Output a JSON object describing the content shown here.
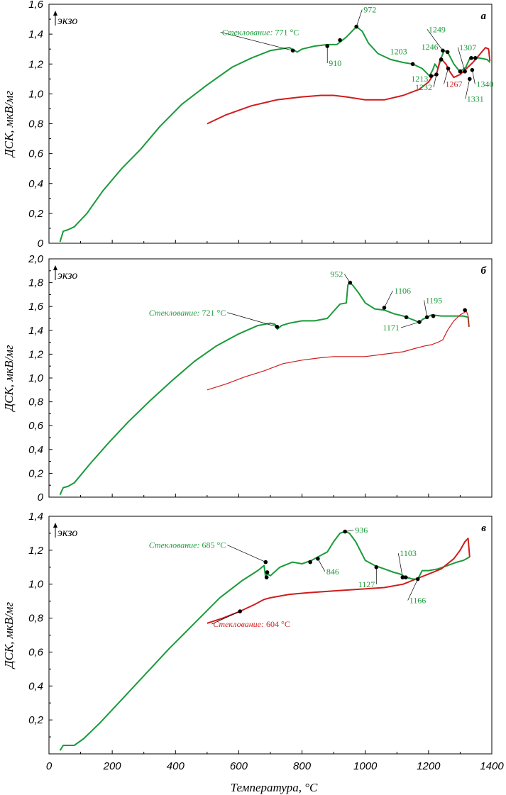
{
  "xlabel": "Температура, °C",
  "ylabel": "ДСК, мкВ/мг",
  "exo_label": "экзо",
  "colors": {
    "green": "#1a9a3a",
    "red": "#d01c1c",
    "axis": "#000000"
  },
  "x_ticks": [
    "0",
    "200",
    "400",
    "600",
    "800",
    "1000",
    "1200",
    "1400"
  ],
  "chart_data": [
    {
      "panel_label": "а",
      "type": "line",
      "xlim": [
        0,
        1400
      ],
      "ylim": [
        0,
        1.6
      ],
      "y_ticks": [
        "0",
        "0,2",
        "0,4",
        "0,6",
        "0,8",
        "1,0",
        "1,2",
        "1,4",
        "1,6"
      ],
      "series": [
        {
          "color": "green",
          "x": [
            35,
            45,
            60,
            80,
            120,
            170,
            230,
            290,
            350,
            420,
            500,
            580,
            640,
            700,
            760,
            785,
            800,
            840,
            880,
            910,
            940,
            972,
            990,
            1010,
            1040,
            1080,
            1120,
            1150,
            1180,
            1203,
            1213,
            1220,
            1230,
            1240,
            1249,
            1260,
            1270,
            1280,
            1295,
            1307,
            1318,
            1331,
            1340,
            1360,
            1385,
            1395
          ],
          "y": [
            0.01,
            0.08,
            0.09,
            0.11,
            0.2,
            0.35,
            0.5,
            0.63,
            0.78,
            0.93,
            1.06,
            1.18,
            1.24,
            1.29,
            1.31,
            1.28,
            1.3,
            1.32,
            1.33,
            1.33,
            1.38,
            1.45,
            1.42,
            1.34,
            1.27,
            1.23,
            1.21,
            1.2,
            1.17,
            1.12,
            1.16,
            1.2,
            1.17,
            1.24,
            1.29,
            1.28,
            1.24,
            1.2,
            1.16,
            1.16,
            1.18,
            1.24,
            1.24,
            1.24,
            1.23,
            1.21
          ]
        },
        {
          "color": "red",
          "x": [
            500,
            560,
            640,
            720,
            800,
            860,
            900,
            940,
            1000,
            1060,
            1120,
            1170,
            1200,
            1213,
            1225,
            1238,
            1246,
            1255,
            1267,
            1280,
            1300,
            1320,
            1340,
            1360,
            1380,
            1390,
            1394
          ],
          "y": [
            0.8,
            0.86,
            0.92,
            0.96,
            0.98,
            0.99,
            0.99,
            0.98,
            0.96,
            0.96,
            0.99,
            1.03,
            1.08,
            1.12,
            1.13,
            1.24,
            1.22,
            1.2,
            1.15,
            1.11,
            1.13,
            1.17,
            1.21,
            1.26,
            1.31,
            1.3,
            1.22
          ]
        }
      ],
      "points": [
        {
          "color": "green",
          "x": 771,
          "y": 1.29,
          "label": "Стеклование: 771 °C",
          "italic_prefix": "Стеклование:",
          "value": " 771 °C"
        },
        {
          "color": "green",
          "x": 880,
          "y": 1.32,
          "label": "910"
        },
        {
          "color": "green",
          "x": 920,
          "y": 1.36,
          "label": ""
        },
        {
          "color": "green",
          "x": 972,
          "y": 1.45,
          "label": "972"
        },
        {
          "color": "green",
          "x": 1150,
          "y": 1.2,
          "label": "1203"
        },
        {
          "color": "green",
          "x": 1208,
          "y": 1.12,
          "label": "1213"
        },
        {
          "color": "green",
          "x": 1225,
          "y": 1.13,
          "label": "1232"
        },
        {
          "color": "green",
          "x": 1240,
          "y": 1.23,
          "label": "1246"
        },
        {
          "color": "green",
          "x": 1245,
          "y": 1.29,
          "label": "1249"
        },
        {
          "color": "green",
          "x": 1260,
          "y": 1.28,
          "label": ""
        },
        {
          "color": "red",
          "x": 1262,
          "y": 1.17,
          "label": "1267"
        },
        {
          "color": "green",
          "x": 1300,
          "y": 1.15,
          "label": ""
        },
        {
          "color": "green",
          "x": 1315,
          "y": 1.15,
          "label": "1307"
        },
        {
          "color": "green",
          "x": 1330,
          "y": 1.1,
          "label": "1331"
        },
        {
          "color": "green",
          "x": 1335,
          "y": 1.24,
          "label": ""
        },
        {
          "color": "green",
          "x": 1338,
          "y": 1.16,
          "label": "1340"
        },
        {
          "color": "green",
          "x": 1348,
          "y": 1.24,
          "label": ""
        }
      ]
    },
    {
      "panel_label": "б",
      "type": "line",
      "xlim": [
        0,
        1400
      ],
      "ylim": [
        0,
        2.0
      ],
      "y_ticks": [
        "0",
        "0,2",
        "0,4",
        "0,6",
        "0,8",
        "1,0",
        "1,2",
        "1,4",
        "1,6",
        "1,8",
        "2,0"
      ],
      "series": [
        {
          "color": "green",
          "x": [
            35,
            45,
            60,
            80,
            130,
            190,
            250,
            320,
            390,
            460,
            530,
            600,
            660,
            700,
            715,
            722,
            735,
            760,
            800,
            840,
            880,
            900,
            920,
            940,
            945,
            950,
            960,
            980,
            1000,
            1030,
            1060,
            1090,
            1120,
            1140,
            1160,
            1171,
            1180,
            1195,
            1210,
            1240,
            1280,
            1310,
            1325,
            1328
          ],
          "y": [
            0.02,
            0.08,
            0.09,
            0.12,
            0.28,
            0.46,
            0.63,
            0.81,
            0.98,
            1.14,
            1.27,
            1.37,
            1.44,
            1.46,
            1.45,
            1.41,
            1.44,
            1.46,
            1.48,
            1.48,
            1.5,
            1.56,
            1.62,
            1.63,
            1.78,
            1.8,
            1.78,
            1.71,
            1.63,
            1.58,
            1.57,
            1.54,
            1.52,
            1.5,
            1.48,
            1.46,
            1.49,
            1.51,
            1.53,
            1.52,
            1.52,
            1.52,
            1.51,
            1.43
          ]
        },
        {
          "color": "red",
          "x": [
            500,
            560,
            620,
            680,
            740,
            800,
            860,
            900,
            940,
            1000,
            1060,
            1120,
            1160,
            1190,
            1210,
            1230,
            1245,
            1260,
            1280,
            1300,
            1320,
            1325,
            1328
          ],
          "y": [
            0.9,
            0.95,
            1.01,
            1.06,
            1.12,
            1.15,
            1.17,
            1.18,
            1.18,
            1.18,
            1.2,
            1.22,
            1.25,
            1.27,
            1.28,
            1.3,
            1.32,
            1.4,
            1.48,
            1.53,
            1.56,
            1.52,
            1.43
          ]
        }
      ],
      "points": [
        {
          "color": "green",
          "x": 721,
          "y": 1.43,
          "label": "Стеклование: 721 °C",
          "italic_prefix": "Стеклование:",
          "value": " 721 °C"
        },
        {
          "color": "green",
          "x": 952,
          "y": 1.8,
          "label": "952"
        },
        {
          "color": "green",
          "x": 1060,
          "y": 1.59,
          "label": "1106"
        },
        {
          "color": "green",
          "x": 1130,
          "y": 1.51,
          "label": ""
        },
        {
          "color": "green",
          "x": 1171,
          "y": 1.47,
          "label": "1171"
        },
        {
          "color": "green",
          "x": 1195,
          "y": 1.51,
          "label": "1195"
        },
        {
          "color": "green",
          "x": 1215,
          "y": 1.52,
          "label": ""
        },
        {
          "color": "green",
          "x": 1315,
          "y": 1.57,
          "label": ""
        }
      ]
    },
    {
      "panel_label": "в",
      "type": "line",
      "xlim": [
        0,
        1400
      ],
      "ylim": [
        0,
        1.4
      ],
      "y_ticks": [
        "",
        "0,2",
        "0,4",
        "0,6",
        "0,8",
        "1,0",
        "1,2",
        "1,4"
      ],
      "series": [
        {
          "color": "green",
          "x": [
            35,
            45,
            60,
            80,
            110,
            160,
            220,
            300,
            380,
            460,
            540,
            610,
            660,
            680,
            685,
            690,
            700,
            730,
            770,
            800,
            830,
            860,
            880,
            900,
            920,
            936,
            950,
            970,
            1000,
            1030,
            1060,
            1090,
            1110,
            1130,
            1150,
            1166,
            1180,
            1200,
            1230,
            1260,
            1290,
            1310,
            1330
          ],
          "y": [
            0.02,
            0.05,
            0.05,
            0.05,
            0.09,
            0.18,
            0.3,
            0.46,
            0.62,
            0.77,
            0.92,
            1.02,
            1.08,
            1.11,
            1.04,
            1.06,
            1.05,
            1.1,
            1.13,
            1.12,
            1.14,
            1.17,
            1.19,
            1.25,
            1.3,
            1.31,
            1.3,
            1.25,
            1.14,
            1.11,
            1.09,
            1.07,
            1.06,
            1.04,
            1.03,
            1.03,
            1.08,
            1.08,
            1.09,
            1.11,
            1.13,
            1.14,
            1.16
          ]
        },
        {
          "color": "red",
          "x": [
            500,
            550,
            604,
            650,
            680,
            700,
            760,
            820,
            900,
            980,
            1060,
            1120,
            1160,
            1200,
            1240,
            1280,
            1300,
            1315,
            1325,
            1330
          ],
          "y": [
            0.77,
            0.8,
            0.84,
            0.88,
            0.91,
            0.92,
            0.94,
            0.95,
            0.96,
            0.97,
            0.98,
            1.0,
            1.03,
            1.06,
            1.09,
            1.15,
            1.2,
            1.25,
            1.27,
            1.16
          ]
        }
      ],
      "points": [
        {
          "color": "green",
          "x": 685,
          "y": 1.13,
          "label": "Стеклование: 685 °C",
          "italic_prefix": "Стеклование:",
          "value": " 685 °C"
        },
        {
          "color": "green",
          "x": 690,
          "y": 1.07,
          "label": ""
        },
        {
          "color": "green",
          "x": 688,
          "y": 1.04,
          "label": ""
        },
        {
          "color": "green",
          "x": 826,
          "y": 1.13,
          "label": ""
        },
        {
          "color": "green",
          "x": 850,
          "y": 1.15,
          "label": "846"
        },
        {
          "color": "green",
          "x": 936,
          "y": 1.31,
          "label": "936"
        },
        {
          "color": "green",
          "x": 1035,
          "y": 1.1,
          "label": "1127"
        },
        {
          "color": "green",
          "x": 1118,
          "y": 1.04,
          "label": "1103"
        },
        {
          "color": "green",
          "x": 1128,
          "y": 1.04,
          "label": ""
        },
        {
          "color": "green",
          "x": 1166,
          "y": 1.03,
          "label": "1166"
        },
        {
          "color": "red",
          "x": 604,
          "y": 0.84,
          "label": "Стеклование: 604 °C",
          "italic_prefix": "Стеклование:",
          "value": " 604 °C"
        }
      ]
    }
  ]
}
